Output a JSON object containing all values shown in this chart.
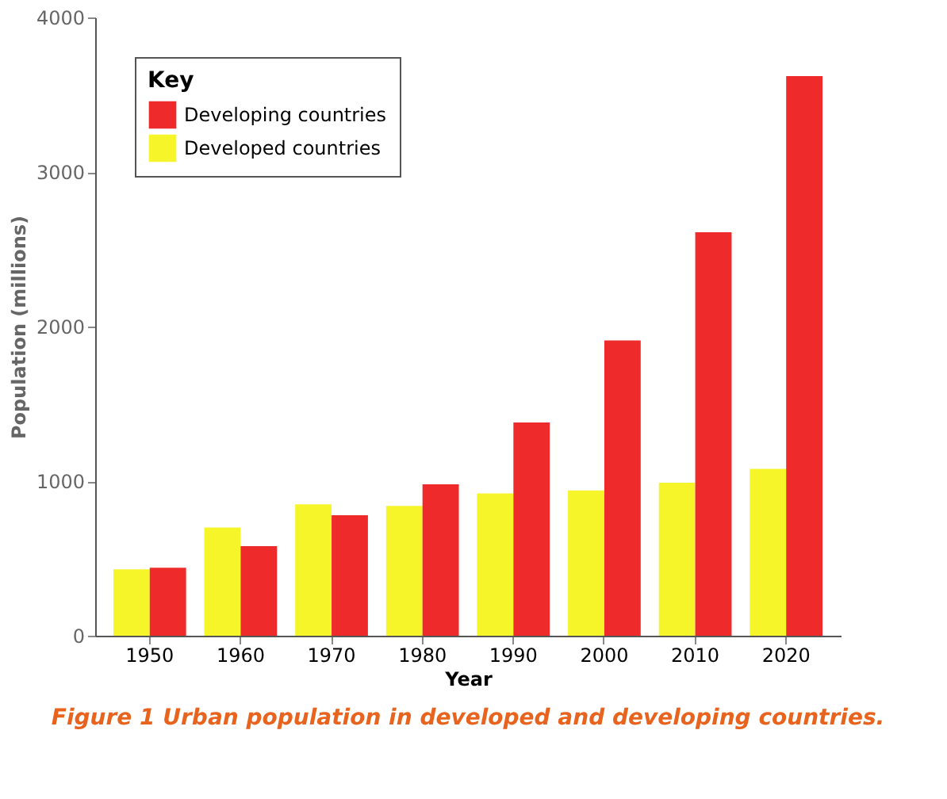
{
  "chart_data": {
    "type": "bar",
    "title": "Figure 1  Urban population in developed and developing countries.",
    "xlabel": "Year",
    "ylabel": "Population (millions)",
    "legend_title": "Key",
    "legend": "top left",
    "categories": [
      "1950",
      "1960",
      "1970",
      "1980",
      "1990",
      "2000",
      "2010",
      "2020"
    ],
    "series": [
      {
        "name": "Developed countries",
        "color": "#f5f52a",
        "values": [
          430,
          700,
          850,
          840,
          920,
          940,
          990,
          1080
        ]
      },
      {
        "name": "Developing countries",
        "color": "#ee2a2a",
        "values": [
          440,
          580,
          780,
          980,
          1380,
          1910,
          2610,
          3620
        ]
      }
    ],
    "ylim": [
      0,
      4000
    ],
    "yticks": [
      0,
      1000,
      2000,
      3000,
      4000
    ],
    "grid": false
  }
}
